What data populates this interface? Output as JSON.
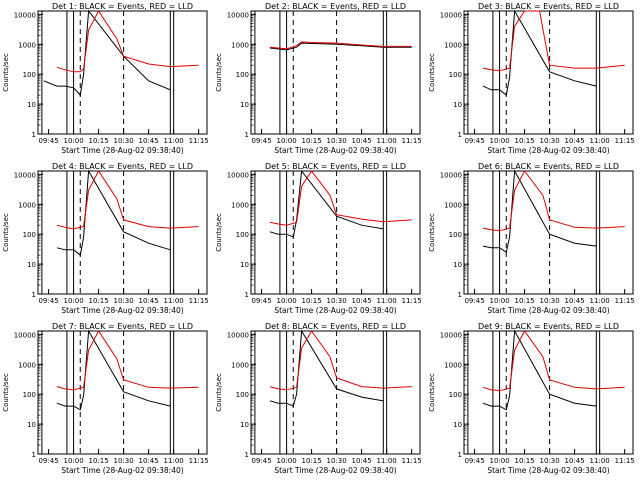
{
  "figure": {
    "x_tick_labels": [
      "09:45",
      "10:00",
      "10:15",
      "10:30",
      "10:45",
      "11:00",
      "11:15"
    ],
    "y_tick_labels": [
      "1",
      "10",
      "100",
      "1000",
      "10000"
    ],
    "ylabel": "Counts/sec",
    "xlabel": "Start Time (28-Aug-02 09:38:40)",
    "colors": {
      "events": "#000000",
      "lld": "#e00000",
      "axes": "#000000",
      "background": "#ffffff"
    }
  },
  "chart_data": [
    {
      "type": "line",
      "title": "Det 1: BLACK = Events, RED = LLD",
      "xlabel": "Start Time (28-Aug-02 09:38:40)",
      "ylabel": "Counts/sec",
      "y_scale": "log",
      "ylim": [
        1,
        13000
      ],
      "xlim": [
        "09:38:40",
        "11:20"
      ],
      "series": [
        {
          "name": "Events",
          "color": "#000000",
          "x": [
            "09:39",
            "09:42",
            "09:50",
            "09:55",
            "10:00",
            "10:04",
            "10:06",
            "10:09",
            "10:30",
            "10:45",
            "10:58"
          ],
          "values": [
            null,
            60,
            40,
            40,
            35,
            20,
            100,
            13000,
            400,
            60,
            30
          ]
        },
        {
          "name": "LLD",
          "color": "#e00000",
          "x": [
            "09:39",
            "09:50",
            "09:55",
            "10:00",
            "10:04",
            "10:06",
            "10:09",
            "10:15",
            "10:26",
            "10:30",
            "10:45",
            "10:58",
            "11:15"
          ],
          "values": [
            null,
            170,
            140,
            120,
            120,
            150,
            3000,
            13000,
            1500,
            400,
            220,
            180,
            200
          ]
        }
      ]
    },
    {
      "type": "line",
      "title": "Det 2: BLACK = Events, RED = LLD",
      "xlabel": "Start Time (28-Aug-02 09:38:40)",
      "ylabel": "Counts/sec",
      "y_scale": "log",
      "ylim": [
        1,
        13000
      ],
      "xlim": [
        "09:38:40",
        "11:20"
      ],
      "series": [
        {
          "name": "Events",
          "color": "#000000",
          "x": [
            "09:39",
            "09:50",
            "09:55",
            "10:00",
            "10:06",
            "10:09",
            "10:30",
            "10:45",
            "10:58",
            "11:15"
          ],
          "values": [
            null,
            750,
            700,
            650,
            800,
            1100,
            1000,
            900,
            800,
            800
          ]
        },
        {
          "name": "LLD",
          "color": "#e00000",
          "x": [
            "09:39",
            "09:50",
            "09:55",
            "10:00",
            "10:06",
            "10:09",
            "10:15",
            "10:30",
            "10:45",
            "10:58",
            "11:15"
          ],
          "values": [
            null,
            800,
            750,
            700,
            900,
            1200,
            1150,
            1100,
            950,
            850,
            850
          ]
        }
      ]
    },
    {
      "type": "line",
      "title": "Det 3: BLACK = Events, RED = LLD",
      "xlabel": "Start Time (28-Aug-02 09:38:40)",
      "ylabel": "Counts/sec",
      "y_scale": "log",
      "ylim": [
        1,
        13000
      ],
      "xlim": [
        "09:38:40",
        "11:20"
      ],
      "series": [
        {
          "name": "Events",
          "color": "#000000",
          "x": [
            "09:39",
            "09:50",
            "09:55",
            "10:00",
            "10:04",
            "10:06",
            "10:09",
            "10:30",
            "10:45",
            "10:58"
          ],
          "values": [
            null,
            40,
            30,
            30,
            20,
            80,
            13000,
            120,
            60,
            40
          ]
        },
        {
          "name": "LLD",
          "color": "#e00000",
          "x": [
            "09:39",
            "09:50",
            "09:55",
            "10:00",
            "10:06",
            "10:09",
            "10:15",
            "10:24",
            "10:30",
            "10:45",
            "10:58",
            "11:15"
          ],
          "values": [
            null,
            160,
            140,
            130,
            160,
            4000,
            13000,
            13000,
            200,
            160,
            160,
            200
          ]
        }
      ]
    },
    {
      "type": "line",
      "title": "Det 4: BLACK = Events, RED = LLD",
      "xlabel": "Start Time (28-Aug-02 09:38:40)",
      "ylabel": "Counts/sec",
      "y_scale": "log",
      "ylim": [
        1,
        13000
      ],
      "xlim": [
        "09:38:40",
        "11:20"
      ],
      "series": [
        {
          "name": "Events",
          "color": "#000000",
          "x": [
            "09:39",
            "09:50",
            "09:55",
            "10:00",
            "10:04",
            "10:06",
            "10:09",
            "10:30",
            "10:45",
            "10:58"
          ],
          "values": [
            null,
            35,
            30,
            30,
            20,
            80,
            13000,
            120,
            50,
            30
          ]
        },
        {
          "name": "LLD",
          "color": "#e00000",
          "x": [
            "09:39",
            "09:50",
            "09:55",
            "10:00",
            "10:06",
            "10:09",
            "10:15",
            "10:26",
            "10:30",
            "10:45",
            "10:58",
            "11:15"
          ],
          "values": [
            null,
            200,
            170,
            150,
            180,
            3000,
            13000,
            1500,
            300,
            180,
            160,
            180
          ]
        }
      ]
    },
    {
      "type": "line",
      "title": "Det 5: BLACK = Events, RED = LLD",
      "xlabel": "Start Time (28-Aug-02 09:38:40)",
      "ylabel": "Counts/sec",
      "y_scale": "log",
      "ylim": [
        1,
        13000
      ],
      "xlim": [
        "09:38:40",
        "11:20"
      ],
      "series": [
        {
          "name": "Events",
          "color": "#000000",
          "x": [
            "09:39",
            "09:50",
            "09:55",
            "10:00",
            "10:04",
            "10:06",
            "10:09",
            "10:30",
            "10:45",
            "10:58"
          ],
          "values": [
            null,
            120,
            100,
            100,
            80,
            300,
            13000,
            400,
            200,
            150
          ]
        },
        {
          "name": "LLD",
          "color": "#e00000",
          "x": [
            "09:39",
            "09:50",
            "09:55",
            "10:00",
            "10:06",
            "10:09",
            "10:15",
            "10:26",
            "10:30",
            "10:45",
            "10:58",
            "11:15"
          ],
          "values": [
            null,
            250,
            220,
            200,
            250,
            4000,
            13000,
            2000,
            450,
            320,
            260,
            300
          ]
        }
      ]
    },
    {
      "type": "line",
      "title": "Det 6: BLACK = Events, RED = LLD",
      "xlabel": "Start Time (28-Aug-02 09:38:40)",
      "ylabel": "Counts/sec",
      "y_scale": "log",
      "ylim": [
        1,
        13000
      ],
      "xlim": [
        "09:38:40",
        "11:20"
      ],
      "series": [
        {
          "name": "Events",
          "color": "#000000",
          "x": [
            "09:39",
            "09:50",
            "09:55",
            "10:00",
            "10:04",
            "10:06",
            "10:09",
            "10:30",
            "10:45",
            "10:58"
          ],
          "values": [
            null,
            40,
            35,
            35,
            25,
            80,
            13000,
            100,
            50,
            40
          ]
        },
        {
          "name": "LLD",
          "color": "#e00000",
          "x": [
            "09:39",
            "09:50",
            "09:55",
            "10:00",
            "10:06",
            "10:09",
            "10:15",
            "10:26",
            "10:30",
            "10:45",
            "10:58",
            "11:15"
          ],
          "values": [
            null,
            160,
            140,
            130,
            160,
            3000,
            13000,
            2000,
            300,
            170,
            160,
            180
          ]
        }
      ]
    },
    {
      "type": "line",
      "title": "Det 7: BLACK = Events, RED = LLD",
      "xlabel": "Start Time (28-Aug-02 09:38:40)",
      "ylabel": "Counts/sec",
      "y_scale": "log",
      "ylim": [
        1,
        13000
      ],
      "xlim": [
        "09:38:40",
        "11:20"
      ],
      "series": [
        {
          "name": "Events",
          "color": "#000000",
          "x": [
            "09:39",
            "09:50",
            "09:55",
            "10:00",
            "10:04",
            "10:06",
            "10:09",
            "10:30",
            "10:45",
            "10:58"
          ],
          "values": [
            null,
            50,
            40,
            40,
            30,
            90,
            13000,
            120,
            60,
            40
          ]
        },
        {
          "name": "LLD",
          "color": "#e00000",
          "x": [
            "09:39",
            "09:50",
            "09:55",
            "10:00",
            "10:06",
            "10:09",
            "10:15",
            "10:26",
            "10:30",
            "10:45",
            "10:58",
            "11:15"
          ],
          "values": [
            null,
            180,
            150,
            140,
            170,
            3000,
            13000,
            1500,
            300,
            170,
            160,
            170
          ]
        }
      ]
    },
    {
      "type": "line",
      "title": "Det 8: BLACK = Events, RED = LLD",
      "xlabel": "Start Time (28-Aug-02 09:38:40)",
      "ylabel": "Counts/sec",
      "y_scale": "log",
      "ylim": [
        1,
        13000
      ],
      "xlim": [
        "09:38:40",
        "11:20"
      ],
      "series": [
        {
          "name": "Events",
          "color": "#000000",
          "x": [
            "09:39",
            "09:50",
            "09:55",
            "10:00",
            "10:04",
            "10:06",
            "10:09",
            "10:30",
            "10:45",
            "10:58"
          ],
          "values": [
            null,
            60,
            50,
            50,
            40,
            100,
            13000,
            150,
            80,
            60
          ]
        },
        {
          "name": "LLD",
          "color": "#e00000",
          "x": [
            "09:39",
            "09:50",
            "09:55",
            "10:00",
            "10:06",
            "10:09",
            "10:15",
            "10:26",
            "10:30",
            "10:45",
            "10:58",
            "11:15"
          ],
          "values": [
            null,
            180,
            150,
            140,
            170,
            3500,
            13000,
            1800,
            350,
            180,
            160,
            180
          ]
        }
      ]
    },
    {
      "type": "line",
      "title": "Det 9: BLACK = Events, RED = LLD",
      "xlabel": "Start Time (28-Aug-02 09:38:40)",
      "ylabel": "Counts/sec",
      "y_scale": "log",
      "ylim": [
        1,
        13000
      ],
      "xlim": [
        "09:38:40",
        "11:20"
      ],
      "series": [
        {
          "name": "Events",
          "color": "#000000",
          "x": [
            "09:39",
            "09:50",
            "09:55",
            "10:00",
            "10:04",
            "10:06",
            "10:09",
            "10:30",
            "10:45",
            "10:58"
          ],
          "values": [
            null,
            50,
            40,
            40,
            30,
            90,
            13000,
            100,
            50,
            40
          ]
        },
        {
          "name": "LLD",
          "color": "#e00000",
          "x": [
            "09:39",
            "09:50",
            "09:55",
            "10:00",
            "10:06",
            "10:09",
            "10:15",
            "10:26",
            "10:30",
            "10:45",
            "10:58",
            "11:15"
          ],
          "values": [
            null,
            170,
            140,
            130,
            160,
            3000,
            13000,
            1800,
            300,
            170,
            150,
            170
          ]
        }
      ]
    }
  ]
}
